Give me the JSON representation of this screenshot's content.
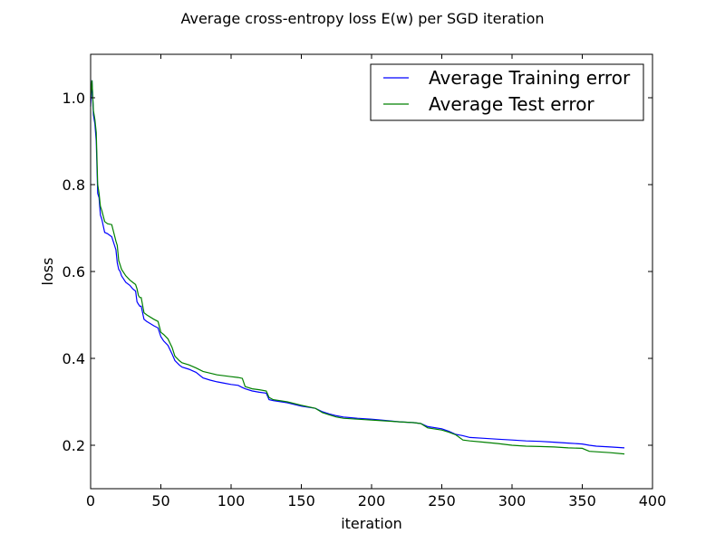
{
  "chart_data": {
    "type": "line",
    "title": "Average cross-entropy loss E(w) per SGD iteration",
    "xlabel": "iteration",
    "ylabel": "loss",
    "xlim": [
      0,
      400
    ],
    "ylim": [
      0.1,
      1.1
    ],
    "xticks": [
      0,
      50,
      100,
      150,
      200,
      250,
      300,
      350,
      400
    ],
    "xtick_labels": [
      "0",
      "50",
      "100",
      "150",
      "200",
      "250",
      "300",
      "350",
      "400"
    ],
    "yticks": [
      0.2,
      0.4,
      0.6,
      0.8,
      1.0
    ],
    "ytick_labels": [
      "0.2",
      "0.4",
      "0.6",
      "0.8",
      "1.0"
    ],
    "grid": false,
    "legend_position": "top-right",
    "series": [
      {
        "name": "Average Training error",
        "color": "#0000ff",
        "x": [
          0,
          1,
          2,
          3,
          4,
          5,
          6,
          7,
          8,
          10,
          12,
          15,
          18,
          19,
          20,
          21,
          22,
          25,
          28,
          30,
          32,
          33,
          34,
          35,
          36,
          38,
          40,
          45,
          48,
          50,
          52,
          55,
          58,
          60,
          63,
          65,
          70,
          75,
          80,
          85,
          90,
          95,
          100,
          105,
          108,
          110,
          115,
          120,
          125,
          127,
          130,
          140,
          150,
          160,
          165,
          170,
          175,
          180,
          190,
          200,
          210,
          220,
          230,
          235,
          240,
          250,
          255,
          260,
          265,
          270,
          280,
          290,
          300,
          310,
          320,
          330,
          340,
          350,
          355,
          360,
          370,
          380
        ],
        "y": [
          0.98,
          1.04,
          0.96,
          0.94,
          0.9,
          0.78,
          0.77,
          0.73,
          0.72,
          0.69,
          0.687,
          0.68,
          0.65,
          0.62,
          0.605,
          0.6,
          0.59,
          0.575,
          0.568,
          0.56,
          0.555,
          0.53,
          0.525,
          0.52,
          0.52,
          0.49,
          0.485,
          0.475,
          0.47,
          0.45,
          0.44,
          0.43,
          0.41,
          0.395,
          0.385,
          0.38,
          0.375,
          0.368,
          0.355,
          0.35,
          0.346,
          0.343,
          0.34,
          0.338,
          0.333,
          0.33,
          0.325,
          0.322,
          0.32,
          0.305,
          0.303,
          0.298,
          0.29,
          0.285,
          0.277,
          0.272,
          0.268,
          0.265,
          0.262,
          0.26,
          0.257,
          0.254,
          0.252,
          0.25,
          0.243,
          0.238,
          0.232,
          0.225,
          0.222,
          0.218,
          0.216,
          0.214,
          0.212,
          0.21,
          0.209,
          0.207,
          0.205,
          0.203,
          0.2,
          0.198,
          0.196,
          0.194
        ]
      },
      {
        "name": "Average Test error",
        "color": "#008000",
        "x": [
          0,
          1,
          2,
          3,
          4,
          5,
          6,
          7,
          8,
          10,
          12,
          15,
          18,
          19,
          20,
          21,
          22,
          25,
          28,
          30,
          32,
          33,
          34,
          35,
          36,
          38,
          40,
          45,
          48,
          50,
          52,
          55,
          58,
          60,
          63,
          65,
          70,
          75,
          80,
          85,
          90,
          95,
          100,
          105,
          108,
          110,
          115,
          120,
          125,
          127,
          130,
          140,
          150,
          160,
          165,
          170,
          175,
          180,
          190,
          200,
          210,
          220,
          230,
          235,
          240,
          250,
          255,
          260,
          265,
          270,
          280,
          290,
          300,
          310,
          320,
          330,
          340,
          350,
          355,
          360,
          370,
          380
        ],
        "y": [
          1.0,
          1.04,
          0.97,
          0.95,
          0.92,
          0.8,
          0.78,
          0.75,
          0.74,
          0.715,
          0.71,
          0.708,
          0.67,
          0.66,
          0.625,
          0.615,
          0.605,
          0.59,
          0.58,
          0.575,
          0.57,
          0.56,
          0.545,
          0.54,
          0.54,
          0.505,
          0.5,
          0.49,
          0.485,
          0.46,
          0.455,
          0.445,
          0.425,
          0.405,
          0.395,
          0.39,
          0.385,
          0.378,
          0.37,
          0.366,
          0.362,
          0.36,
          0.358,
          0.356,
          0.354,
          0.335,
          0.33,
          0.328,
          0.325,
          0.31,
          0.305,
          0.3,
          0.292,
          0.285,
          0.275,
          0.27,
          0.265,
          0.262,
          0.26,
          0.258,
          0.256,
          0.254,
          0.252,
          0.25,
          0.24,
          0.235,
          0.23,
          0.224,
          0.212,
          0.21,
          0.207,
          0.204,
          0.2,
          0.198,
          0.197,
          0.196,
          0.194,
          0.193,
          0.186,
          0.185,
          0.183,
          0.18
        ]
      }
    ]
  }
}
